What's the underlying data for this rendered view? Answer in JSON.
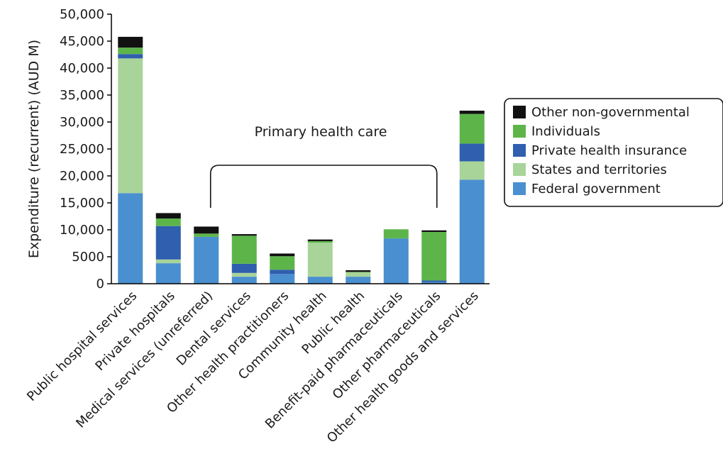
{
  "chart_data": {
    "type": "bar",
    "stacked": true,
    "ylabel": "Expenditure (recurrent) (AUD M)",
    "ylim": [
      0,
      50000
    ],
    "yticks": [
      0,
      5000,
      10000,
      15000,
      20000,
      25000,
      30000,
      35000,
      40000,
      45000,
      50000
    ],
    "ytick_labels": [
      "0",
      "5000",
      "10,000",
      "15,000",
      "20,000",
      "25,000",
      "30,000",
      "35,000",
      "40,000",
      "45,000",
      "50,000"
    ],
    "grid": false,
    "legend_position": "right",
    "categories": [
      "Public hospital services",
      "Private hospitals",
      "Medical services (unreferred)",
      "Dental services",
      "Other health practitioners",
      "Community health",
      "Public health",
      "Benefit-paid pharmaceuticals",
      "Other pharmaceuticals",
      "Other health goods and services"
    ],
    "series": [
      {
        "name": "Federal government",
        "color": "#4a8fcf",
        "values": [
          16800,
          3800,
          8700,
          1300,
          1800,
          1300,
          1300,
          8400,
          300,
          19300
        ]
      },
      {
        "name": "States and territories",
        "color": "#a8d49a",
        "values": [
          25000,
          700,
          0,
          700,
          0,
          6300,
          800,
          0,
          0,
          3400
        ]
      },
      {
        "name": "Private health insurance",
        "color": "#2f5fae",
        "values": [
          800,
          6200,
          0,
          1700,
          800,
          0,
          0,
          0,
          300,
          3300
        ]
      },
      {
        "name": "Individuals",
        "color": "#5db54a",
        "values": [
          1200,
          1400,
          600,
          5200,
          2500,
          300,
          100,
          1700,
          9000,
          5500
        ]
      },
      {
        "name": "Other non-governmental",
        "color": "#111111",
        "values": [
          2000,
          1000,
          1300,
          300,
          500,
          300,
          300,
          0,
          300,
          600
        ]
      }
    ],
    "legend": {
      "entries": [
        "Other non-governmental",
        "Individuals",
        "Private health insurance",
        "States and territories",
        "Federal government"
      ]
    },
    "annotation": {
      "text": "Primary health care",
      "spans_categories": [
        "Medical services (unreferred)",
        "Other pharmaceuticals"
      ]
    }
  }
}
